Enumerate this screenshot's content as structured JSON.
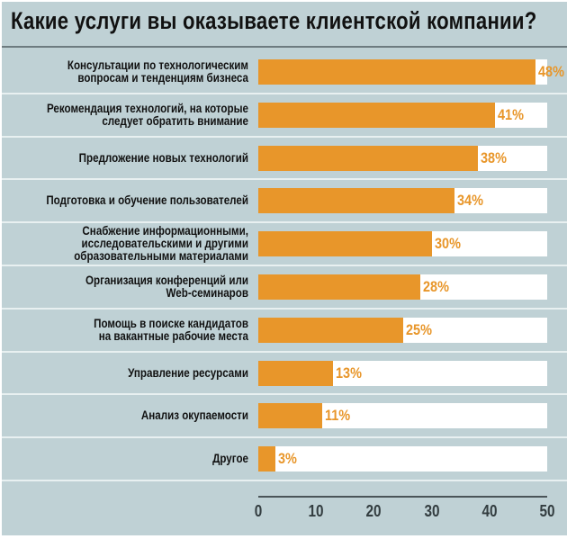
{
  "chart_data": {
    "type": "bar",
    "orientation": "horizontal",
    "title": "Какие услуги вы оказываете клиентской компании?",
    "categories": [
      "Консультации по технологическим\nвопросам и тенденциям бизнеса",
      "Рекомендация технологий, на которые\nследует обратить внимание",
      "Предложение новых технологий",
      "Подготовка и обучение пользователей",
      "Снабжение информационными,\nисследовательскими и другими\nобразовательными материалами",
      "Организация конференций или\nWeb-семинаров",
      "Помощь в поиске кандидатов\nна вакантные рабочие места",
      "Управление ресурсами",
      "Анализ окупаемости",
      "Другое"
    ],
    "values": [
      48,
      41,
      38,
      34,
      30,
      28,
      25,
      13,
      11,
      3
    ],
    "value_labels": [
      "48%",
      "41%",
      "38%",
      "34%",
      "30%",
      "28%",
      "25%",
      "13%",
      "11%",
      "3%"
    ],
    "xlim": [
      0,
      50
    ],
    "xticks": [
      "0",
      "10",
      "20",
      "30",
      "40",
      "50"
    ],
    "xlabel": "",
    "ylabel": "",
    "bar_color": "#e8962a",
    "background": "#bfd1d5"
  }
}
